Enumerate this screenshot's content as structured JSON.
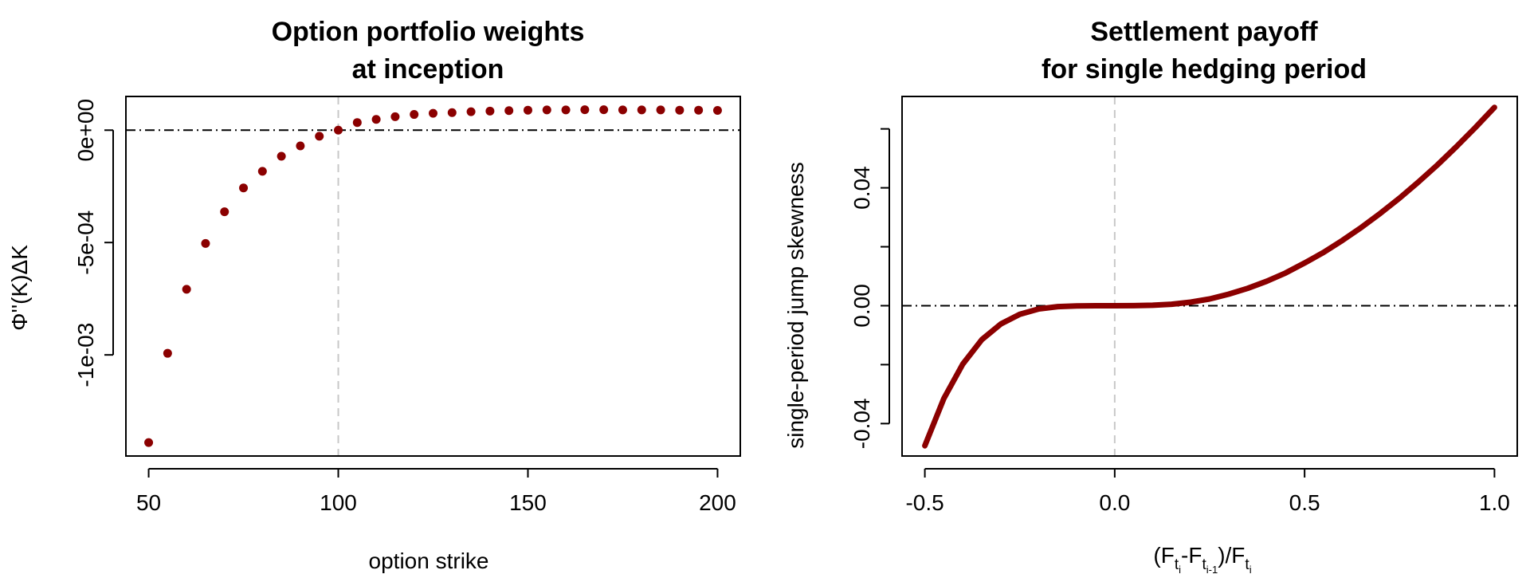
{
  "chart_data": [
    {
      "type": "scatter",
      "title_line1": "Option portfolio weights",
      "title_line2": "at inception",
      "xlabel": "option strike",
      "ylabel": "Φ''(K)ΔK",
      "xlim": [
        44,
        206
      ],
      "ylim": [
        -0.00145,
        0.00015
      ],
      "xticks": [
        50,
        100,
        150,
        200
      ],
      "xtick_labels": [
        "50",
        "100",
        "150",
        "200"
      ],
      "yticks": [
        -0.001,
        -0.0005,
        0
      ],
      "ytick_labels": [
        "-1e-03",
        "-5e-04",
        "0e+00"
      ],
      "reference_lines": {
        "horizontal": 0,
        "vertical": 100
      },
      "color": "#8b0000",
      "x": [
        50,
        55,
        60,
        65,
        70,
        75,
        80,
        85,
        90,
        95,
        100,
        105,
        110,
        115,
        120,
        125,
        130,
        135,
        140,
        145,
        150,
        155,
        160,
        165,
        170,
        175,
        180,
        185,
        190,
        195,
        200
      ],
      "y": [
        -0.00139,
        -0.000993,
        -0.000708,
        -0.000504,
        -0.000363,
        -0.000257,
        -0.000183,
        -0.000116,
        -7e-05,
        -2.7e-05,
        0,
        3.4e-05,
        4.8e-05,
        6e-05,
        7e-05,
        7.5e-05,
        7.8e-05,
        8.2e-05,
        8.5e-05,
        8.7e-05,
        8.9e-05,
        9e-05,
        9e-05,
        9.1e-05,
        9.1e-05,
        9e-05,
        9e-05,
        9e-05,
        8.9e-05,
        8.9e-05,
        8.8e-05
      ]
    },
    {
      "type": "line",
      "title_line1": "Settlement payoff",
      "title_line2": "for single hedging period",
      "xlabel_parts": [
        "(F",
        "t",
        "i",
        "-F",
        "t",
        "i-1",
        ")/F",
        "t",
        "i"
      ],
      "ylabel": "single-period jump skewness",
      "xlim": [
        -0.56,
        1.06
      ],
      "ylim": [
        -0.051,
        0.071
      ],
      "xticks": [
        -0.5,
        0,
        0.5,
        1
      ],
      "xtick_labels": [
        "-0.5",
        "0.0",
        "0.5",
        "1.0"
      ],
      "yticks": [
        -0.04,
        -0.02,
        0,
        0.02,
        0.04,
        0.06
      ],
      "ytick_labels": [
        "-0.04",
        "",
        "0.00",
        "",
        "0.04",
        ""
      ],
      "reference_lines": {
        "horizontal": 0,
        "vertical": 0
      },
      "color": "#8b0000",
      "x": [
        -0.5,
        -0.45,
        -0.4,
        -0.35,
        -0.3,
        -0.25,
        -0.2,
        -0.15,
        -0.1,
        -0.05,
        0,
        0.05,
        0.1,
        0.15,
        0.2,
        0.25,
        0.3,
        0.35,
        0.4,
        0.45,
        0.5,
        0.55,
        0.6,
        0.65,
        0.7,
        0.75,
        0.8,
        0.85,
        0.9,
        0.95,
        1.0
      ],
      "y": [
        -0.0475,
        -0.0315,
        -0.0198,
        -0.0115,
        -0.0062,
        -0.0029,
        -0.0011,
        -0.0003,
        -5e-05,
        0,
        0,
        2e-05,
        0.00015,
        0.0005,
        0.0012,
        0.0023,
        0.0039,
        0.0059,
        0.0083,
        0.0111,
        0.0145,
        0.0181,
        0.0222,
        0.0266,
        0.0314,
        0.0365,
        0.042,
        0.0478,
        0.054,
        0.0605,
        0.0673
      ]
    }
  ]
}
